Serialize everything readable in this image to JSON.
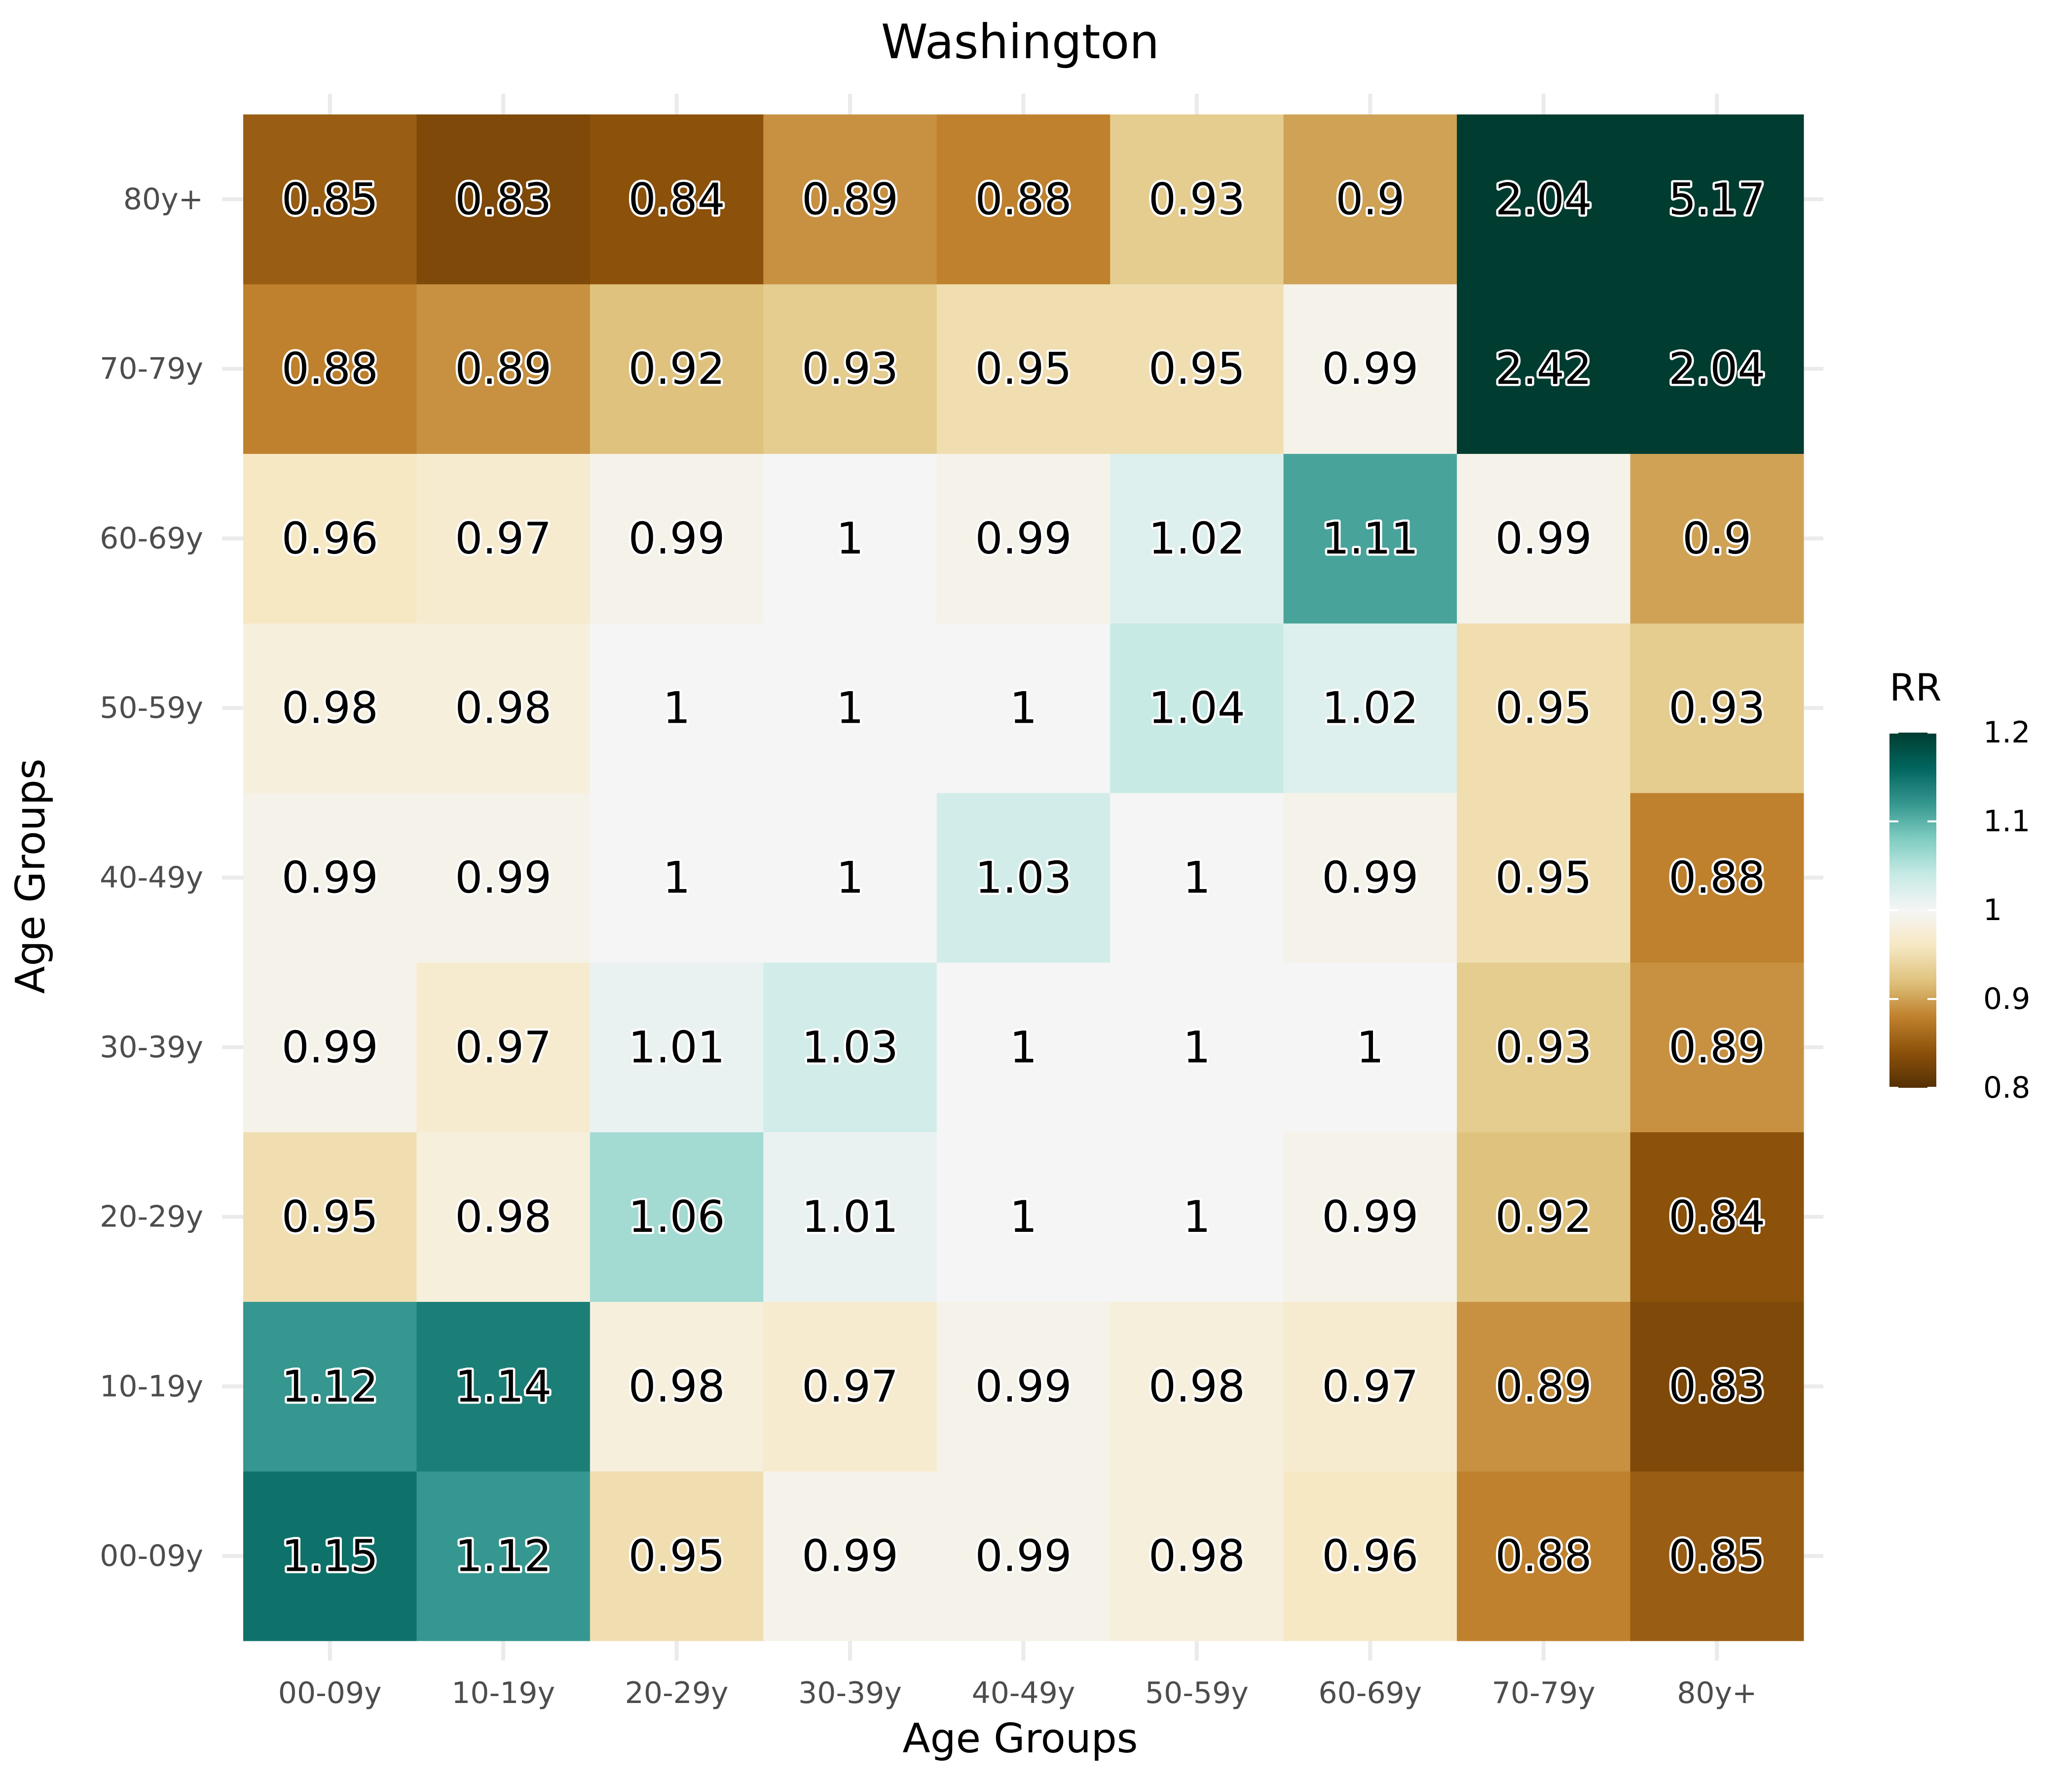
{
  "chart_data": {
    "type": "heatmap",
    "title": "Washington",
    "xlabel": "Age Groups",
    "ylabel": "Age Groups",
    "x_categories": [
      "00-09y",
      "10-19y",
      "20-29y",
      "30-39y",
      "40-49y",
      "50-59y",
      "60-69y",
      "70-79y",
      "80y+"
    ],
    "y_categories": [
      "00-09y",
      "10-19y",
      "20-29y",
      "30-39y",
      "40-49y",
      "50-59y",
      "60-69y",
      "70-79y",
      "80y+"
    ],
    "values": [
      [
        1.15,
        1.12,
        0.95,
        0.99,
        0.99,
        0.98,
        0.96,
        0.88,
        0.85
      ],
      [
        1.12,
        1.14,
        0.98,
        0.97,
        0.99,
        0.98,
        0.97,
        0.89,
        0.83
      ],
      [
        0.95,
        0.98,
        1.06,
        1.01,
        1,
        1,
        0.99,
        0.92,
        0.84
      ],
      [
        0.99,
        0.97,
        1.01,
        1.03,
        1,
        1,
        1,
        0.93,
        0.89
      ],
      [
        0.99,
        0.99,
        1,
        1,
        1.03,
        1,
        0.99,
        0.95,
        0.88
      ],
      [
        0.98,
        0.98,
        1,
        1,
        1,
        1.04,
        1.02,
        0.95,
        0.93
      ],
      [
        0.96,
        0.97,
        0.99,
        1,
        0.99,
        1.02,
        1.11,
        0.99,
        0.9
      ],
      [
        0.88,
        0.89,
        0.92,
        0.93,
        0.95,
        0.95,
        0.99,
        2.42,
        2.04
      ],
      [
        0.85,
        0.83,
        0.84,
        0.89,
        0.88,
        0.93,
        0.9,
        2.04,
        5.17
      ]
    ],
    "legend": {
      "title": "RR",
      "placement": "right",
      "range": [
        0.8,
        1.2
      ],
      "ticks": [
        1.2,
        1.1,
        1,
        0.9,
        0.8
      ],
      "colors": [
        "#543005",
        "#8c510a",
        "#bf812d",
        "#dfc27d",
        "#f6e8c3",
        "#f5f5f5",
        "#c7eae5",
        "#80cdc1",
        "#35978f",
        "#01665e",
        "#003c30"
      ]
    },
    "grid": true
  }
}
